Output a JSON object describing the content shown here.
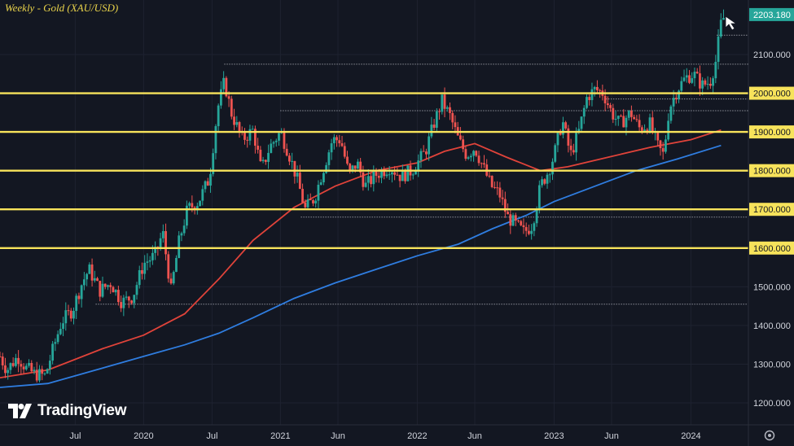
{
  "title": "Weekly - Gold (XAU/USD)",
  "brand": "TradingView",
  "icons": [
    "cursor-arrow-icon",
    "settings-gear-icon",
    "tradingview-logo-icon"
  ],
  "colors": {
    "background": "#131722",
    "grid": "#1e2230",
    "candle_up": "#26a69a",
    "candle_down": "#ef5350",
    "ma_red": "#e0433a",
    "ma_blue": "#2f7de0",
    "level_line": "#f7e35b",
    "last_price_badge": "#26a69a",
    "title": "#e8d24a"
  },
  "chart_data": {
    "type": "candlestick",
    "title": "Weekly - Gold (XAU/USD)",
    "xlabel": "",
    "ylabel": "",
    "ylim": [
      1170,
      2240
    ],
    "y_ticks": [
      "1200.000",
      "1300.000",
      "1400.000",
      "1500.000",
      "1600.000",
      "1700.000",
      "1800.000",
      "1900.000",
      "2000.000",
      "2100.000"
    ],
    "x_ticks": [
      {
        "label": "Jul",
        "t": 2019.5
      },
      {
        "label": "2020",
        "t": 2020.0
      },
      {
        "label": "Jul",
        "t": 2020.5
      },
      {
        "label": "2021",
        "t": 2021.0
      },
      {
        "label": "Jun",
        "t": 2021.42
      },
      {
        "label": "2022",
        "t": 2022.0
      },
      {
        "label": "Jun",
        "t": 2022.42
      },
      {
        "label": "2023",
        "t": 2023.0
      },
      {
        "label": "Jun",
        "t": 2023.42
      },
      {
        "label": "2024",
        "t": 2024.0
      }
    ],
    "last_price": "2203.180",
    "horizontal_levels": [
      "1600.000",
      "1700.000",
      "1800.000",
      "1900.000",
      "2000.000"
    ],
    "range_lines": [
      {
        "y": 2075,
        "t_start": 2020.59
      },
      {
        "y": 1955,
        "t_start": 2021.0
      },
      {
        "y": 1455,
        "t_start": 2019.65
      },
      {
        "y": 1680,
        "t_start": 2021.15
      },
      {
        "y": 1985,
        "t_start": 2023.38
      },
      {
        "y": 2150,
        "t_start": 2024.19
      }
    ],
    "price_anchors": [
      [
        2018.95,
        1320
      ],
      [
        2019.0,
        1285
      ],
      [
        2019.08,
        1320
      ],
      [
        2019.14,
        1290
      ],
      [
        2019.2,
        1275
      ],
      [
        2019.28,
        1270
      ],
      [
        2019.33,
        1330
      ],
      [
        2019.4,
        1410
      ],
      [
        2019.48,
        1440
      ],
      [
        2019.55,
        1510
      ],
      [
        2019.6,
        1545
      ],
      [
        2019.68,
        1490
      ],
      [
        2019.76,
        1510
      ],
      [
        2019.84,
        1460
      ],
      [
        2019.92,
        1475
      ],
      [
        2020.0,
        1560
      ],
      [
        2020.08,
        1580
      ],
      [
        2020.14,
        1640
      ],
      [
        2020.2,
        1490
      ],
      [
        2020.26,
        1620
      ],
      [
        2020.32,
        1700
      ],
      [
        2020.4,
        1720
      ],
      [
        2020.48,
        1780
      ],
      [
        2020.54,
        1960
      ],
      [
        2020.59,
        2030
      ],
      [
        2020.64,
        1950
      ],
      [
        2020.72,
        1880
      ],
      [
        2020.8,
        1905
      ],
      [
        2020.86,
        1800
      ],
      [
        2020.92,
        1860
      ],
      [
        2021.0,
        1900
      ],
      [
        2021.06,
        1845
      ],
      [
        2021.12,
        1780
      ],
      [
        2021.18,
        1700
      ],
      [
        2021.25,
        1730
      ],
      [
        2021.3,
        1790
      ],
      [
        2021.38,
        1880
      ],
      [
        2021.44,
        1880
      ],
      [
        2021.5,
        1790
      ],
      [
        2021.56,
        1820
      ],
      [
        2021.62,
        1760
      ],
      [
        2021.7,
        1790
      ],
      [
        2021.8,
        1810
      ],
      [
        2021.88,
        1785
      ],
      [
        2021.96,
        1800
      ],
      [
        2022.0,
        1820
      ],
      [
        2022.06,
        1850
      ],
      [
        2022.12,
        1920
      ],
      [
        2022.18,
        1980
      ],
      [
        2022.24,
        1940
      ],
      [
        2022.3,
        1880
      ],
      [
        2022.36,
        1840
      ],
      [
        2022.42,
        1860
      ],
      [
        2022.48,
        1810
      ],
      [
        2022.54,
        1760
      ],
      [
        2022.6,
        1740
      ],
      [
        2022.66,
        1680
      ],
      [
        2022.72,
        1660
      ],
      [
        2022.78,
        1640
      ],
      [
        2022.84,
        1660
      ],
      [
        2022.9,
        1760
      ],
      [
        2022.96,
        1800
      ],
      [
        2023.0,
        1840
      ],
      [
        2023.06,
        1930
      ],
      [
        2023.12,
        1840
      ],
      [
        2023.18,
        1900
      ],
      [
        2023.24,
        1990
      ],
      [
        2023.3,
        2010
      ],
      [
        2023.36,
        2000
      ],
      [
        2023.42,
        1950
      ],
      [
        2023.48,
        1920
      ],
      [
        2023.56,
        1950
      ],
      [
        2023.62,
        1910
      ],
      [
        2023.7,
        1920
      ],
      [
        2023.76,
        1860
      ],
      [
        2023.8,
        1840
      ],
      [
        2023.84,
        1960
      ],
      [
        2023.9,
        2010
      ],
      [
        2023.96,
        2040
      ],
      [
        2024.02,
        2050
      ],
      [
        2024.08,
        2020
      ],
      [
        2024.14,
        2030
      ],
      [
        2024.18,
        2080
      ],
      [
        2024.22,
        2180
      ],
      [
        2024.25,
        2203
      ]
    ],
    "ma_red": [
      [
        2018.95,
        1265
      ],
      [
        2019.3,
        1285
      ],
      [
        2019.7,
        1340
      ],
      [
        2020.0,
        1375
      ],
      [
        2020.3,
        1430
      ],
      [
        2020.55,
        1520
      ],
      [
        2020.8,
        1620
      ],
      [
        2021.1,
        1705
      ],
      [
        2021.4,
        1760
      ],
      [
        2021.7,
        1800
      ],
      [
        2022.0,
        1820
      ],
      [
        2022.2,
        1850
      ],
      [
        2022.42,
        1870
      ],
      [
        2022.65,
        1835
      ],
      [
        2022.9,
        1800
      ],
      [
        2023.1,
        1810
      ],
      [
        2023.4,
        1835
      ],
      [
        2023.7,
        1860
      ],
      [
        2024.0,
        1880
      ],
      [
        2024.22,
        1905
      ]
    ],
    "ma_blue": [
      [
        2018.95,
        1240
      ],
      [
        2019.3,
        1250
      ],
      [
        2019.7,
        1290
      ],
      [
        2020.0,
        1320
      ],
      [
        2020.3,
        1350
      ],
      [
        2020.55,
        1380
      ],
      [
        2020.8,
        1420
      ],
      [
        2021.1,
        1470
      ],
      [
        2021.4,
        1510
      ],
      [
        2021.7,
        1545
      ],
      [
        2022.0,
        1580
      ],
      [
        2022.3,
        1610
      ],
      [
        2022.55,
        1650
      ],
      [
        2022.8,
        1685
      ],
      [
        2023.0,
        1720
      ],
      [
        2023.3,
        1760
      ],
      [
        2023.6,
        1800
      ],
      [
        2023.9,
        1830
      ],
      [
        2024.22,
        1865
      ]
    ]
  }
}
